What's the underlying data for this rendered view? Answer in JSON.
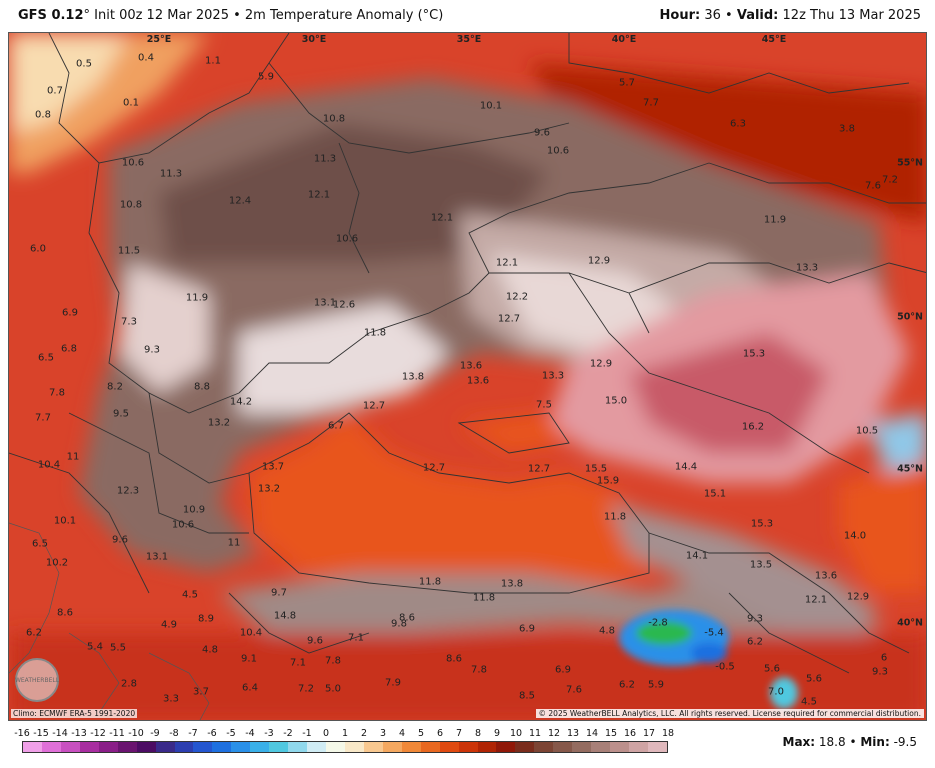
{
  "header": {
    "model": "GFS 0.12",
    "init_text": "° Init 00z 12 Mar 2025 • 2m Temperature Anomaly (°C)",
    "hour_label": "Hour:",
    "hour_value": "36",
    "valid_label": "Valid:",
    "valid_value": "12z Thu 13 Mar 2025",
    "separator": "•"
  },
  "map": {
    "lon_labels": [
      "25°E",
      "30°E",
      "35°E",
      "40°E",
      "45°E"
    ],
    "lat_labels": [
      "55°N",
      "50°N",
      "45°N",
      "40°N"
    ],
    "climo": "Climo: ECMWF ERA-5 1991-2020",
    "copyright": "© 2025 WeatherBELL Analytics, LLC. All rights reserved. License required for commercial distribution.",
    "logo_text": "WEATHERBELL",
    "values": [
      "0.5",
      "0.4",
      "1.1",
      "5.9",
      "0.7",
      "0.1",
      "0.8",
      "10.1",
      "9.6",
      "10.6",
      "5.7",
      "7.7",
      "6.3",
      "3.8",
      "10.8",
      "11.3",
      "10.6",
      "11.3",
      "12.4",
      "12.1",
      "10.8",
      "10.6",
      "12.1",
      "7.6",
      "7.2",
      "11.9",
      "6.0",
      "11.5",
      "12.1",
      "12.9",
      "13.3",
      "11.9",
      "13.1",
      "12.6",
      "12.2",
      "12.7",
      "6.9",
      "7.3",
      "11.8",
      "6.5",
      "6.8",
      "9.3",
      "13.6",
      "13.6",
      "13.8",
      "13.3",
      "12.9",
      "15.3",
      "7.8",
      "8.2",
      "8.8",
      "14.2",
      "12.7",
      "15.0",
      "7.7",
      "9.5",
      "13.2",
      "7.5",
      "16.2",
      "10.5",
      "6.7",
      "10.4",
      "11",
      "13.7",
      "12.7",
      "12.7",
      "15.5",
      "15.9",
      "14.4",
      "15.1",
      "12.3",
      "13.2",
      "10.1",
      "10.9",
      "11.8",
      "15.3",
      "6.5",
      "9.6",
      "10.6",
      "11",
      "14.0",
      "10.2",
      "13.1",
      "14.1",
      "13.5",
      "13.6",
      "4.5",
      "9.7",
      "11.8",
      "13.8",
      "11.8",
      "12.1",
      "12.9",
      "8.6",
      "8.9",
      "14.8",
      "8.6",
      "6.2",
      "4.9",
      "10.4",
      "9.6",
      "7.1",
      "9.8",
      "6.9",
      "4.8",
      "-2.8",
      "-5.4",
      "9.3",
      "6.2",
      "5.4",
      "5.5",
      "4.8",
      "9.1",
      "7.1",
      "7.8",
      "8.6",
      "7.8",
      "6.9",
      "-0.5",
      "5.6",
      "9.3",
      "2.8",
      "3.3",
      "3.7",
      "6.4",
      "7.2",
      "5.0",
      "7.9",
      "8.5",
      "7.6",
      "6.2",
      "5.9",
      "7.0",
      "5.6",
      "4.5",
      "6"
    ]
  },
  "legend": {
    "ticks": [
      "-16",
      "-15",
      "-14",
      "-13",
      "-12",
      "-11",
      "-10",
      "-9",
      "-8",
      "-7",
      "-6",
      "-5",
      "-4",
      "-3",
      "-2",
      "-1",
      "0",
      "1",
      "2",
      "3",
      "4",
      "5",
      "6",
      "7",
      "8",
      "9",
      "10",
      "11",
      "12",
      "13",
      "14",
      "15",
      "16",
      "17",
      "18"
    ],
    "colors": [
      "#f0a0e8",
      "#e070d8",
      "#c850c0",
      "#a82ea0",
      "#8a1e88",
      "#6a1470",
      "#4c0c64",
      "#3a2a8a",
      "#2c3eb0",
      "#2456d0",
      "#1e70e0",
      "#2a90e8",
      "#3ab0e8",
      "#50c8e0",
      "#90d8ec",
      "#d0ecf4",
      "#f4f8e8",
      "#f8e8c8",
      "#f8c890",
      "#f4a860",
      "#f08838",
      "#e86820",
      "#e04a10",
      "#cc3408",
      "#b02404",
      "#901808",
      "#7a2c1c",
      "#7c4434",
      "#86584a",
      "#946c60",
      "#a88078",
      "#bc908c",
      "#cfa4a4",
      "#e0b8bc"
    ],
    "max_label": "Max:",
    "max_value": "18.8",
    "min_label": "Min:",
    "min_value": "-9.5"
  },
  "colors": {
    "warm_land": "#d9432a",
    "sea": "#e8551e",
    "brown": "#8a6a62",
    "light": "#efe2e0",
    "pink": "#e39aa0",
    "cold_blue": "#1e70e0"
  }
}
